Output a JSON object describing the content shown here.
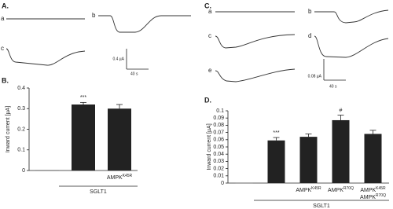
{
  "figure": {
    "panels": [
      {
        "label": "A.",
        "traces": [
          "a",
          "b",
          "c"
        ],
        "scale_y": "0.4 µA",
        "scale_x": "40 s"
      },
      {
        "label": "C.",
        "traces": [
          "a",
          "b",
          "c",
          "d",
          "e"
        ],
        "scale_y": "0.08 µA",
        "scale_x": "40 s"
      }
    ]
  },
  "chart_data": [
    {
      "type": "bar",
      "panel": "B.",
      "y_label": "Inward current [µA]",
      "categories": [
        [],
        [],
        [
          {
            "text": "AMPK",
            "sup": "K45R"
          }
        ]
      ],
      "values": [
        0.002,
        0.32,
        0.3
      ],
      "errors": [
        0,
        0.01,
        0.02
      ],
      "colors": [
        "#555555",
        "#222222",
        "#222222"
      ],
      "annotations": [
        null,
        "***",
        null
      ],
      "group_label": "SGLT1",
      "ylim": [
        0,
        0.4
      ],
      "yticks": [
        0,
        0.1,
        0.2,
        0.3,
        0.4
      ]
    },
    {
      "type": "bar",
      "panel": "D.",
      "y_label": "Inward current [µA]",
      "categories": [
        [],
        [],
        [
          {
            "text": "AMPK",
            "sup": "K45R"
          }
        ],
        [
          {
            "text": "AMPK",
            "sup": "R70Q"
          }
        ],
        [
          {
            "text": "AMPK",
            "sup": "K45R"
          },
          {
            "text": "AMPK",
            "sup": "R70Q"
          }
        ]
      ],
      "values": [
        0.001,
        0.059,
        0.064,
        0.087,
        0.068
      ],
      "errors": [
        0,
        0.004,
        0.004,
        0.007,
        0.005
      ],
      "colors": [
        "#aaaaaa",
        "#222222",
        "#222222",
        "#222222",
        "#222222"
      ],
      "annotations": [
        null,
        "***",
        null,
        "#",
        null
      ],
      "group_label": "SGLT1",
      "ylim": [
        0,
        0.1
      ],
      "yticks": [
        0,
        0.01,
        0.02,
        0.03,
        0.04,
        0.05,
        0.06,
        0.07,
        0.08,
        0.09,
        0.1
      ]
    }
  ]
}
